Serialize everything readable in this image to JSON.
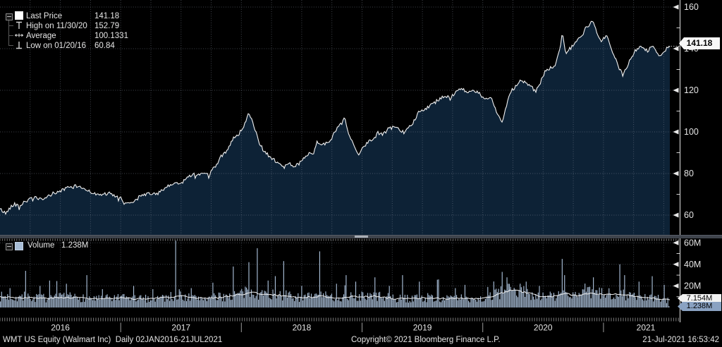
{
  "colors": {
    "background": "#000000",
    "price_fill": "#0d2236",
    "price_line": "#f2f2f2",
    "grid": "#8b95a5",
    "axis": "#c8c8c8",
    "tick_label": "#e4e4e4",
    "volume_bar": "#a8bdd6",
    "volume_ma_line": "#f2f2f2",
    "last_price_badge_bg": "#f7f7f7",
    "volume_badge_bg": "#8aa2c2"
  },
  "price_legend": {
    "collapse_icon": "minus-box-icon",
    "items": [
      {
        "icon": "last-price-swatch",
        "label": "Last Price",
        "value": "141.18"
      },
      {
        "icon": "high-marker-icon",
        "label": "High on 11/30/20",
        "value": "152.79"
      },
      {
        "icon": "average-marker-icon",
        "label": "Average",
        "value": "100.1331"
      },
      {
        "icon": "low-marker-icon",
        "label": "Low on 01/20/16",
        "value": "60.84"
      }
    ]
  },
  "volume_legend": {
    "collapse_icon": "box-icon",
    "swatch": "volume-swatch",
    "label": "Volume",
    "value": "1.238M"
  },
  "axes": {
    "price": {
      "tick_labels": [
        "160",
        "140",
        "120",
        "100",
        "80",
        "60"
      ],
      "tick_values": [
        160,
        140,
        120,
        100,
        80,
        60
      ],
      "minor_values": [
        150,
        130,
        110,
        90,
        70
      ],
      "last_price_label": "141.18"
    },
    "volume": {
      "tick_labels": [
        "60M",
        "40M",
        "20M"
      ],
      "tick_values": [
        60,
        40,
        20
      ],
      "minor_values": [
        50,
        30,
        10
      ],
      "ma_badge_label": "7.154M",
      "last_badge_label": "1.238M"
    },
    "x": {
      "year_labels": [
        "2016",
        "2017",
        "2018",
        "2019",
        "2020",
        "2021"
      ]
    }
  },
  "footer": {
    "left": "WMT US Equity (Walmart Inc)  Daily 02JAN2016-21JUL2021",
    "center": "Copyright© 2021 Bloomberg Finance L.P.",
    "right": "21-Jul-2021 16:53:42"
  },
  "chart_data": [
    {
      "type": "area",
      "title": "WMT US Equity Last Price",
      "x_unit": "decimal_year",
      "x_range": [
        2016.0,
        2021.55
      ],
      "ylim": [
        50,
        170
      ],
      "yticks": [
        60,
        80,
        100,
        120,
        140,
        160
      ],
      "grid": "dotted",
      "legend_position": "top-left",
      "stats": {
        "last_price": 141.18,
        "high_date": "11/30/20",
        "high": 152.79,
        "average": 100.1331,
        "low_date": "01/20/16",
        "low": 60.84
      },
      "series": [
        {
          "name": "Last Price",
          "points": [
            [
              2016.0,
              63.0
            ],
            [
              2016.03,
              61.5
            ],
            [
              2016.05,
              60.84
            ],
            [
              2016.08,
              63.5
            ],
            [
              2016.12,
              65.5
            ],
            [
              2016.16,
              64.0
            ],
            [
              2016.2,
              66.5
            ],
            [
              2016.25,
              67.5
            ],
            [
              2016.3,
              68.5
            ],
            [
              2016.35,
              67.0
            ],
            [
              2016.4,
              69.0
            ],
            [
              2016.44,
              70.5
            ],
            [
              2016.5,
              71.5
            ],
            [
              2016.55,
              73.0
            ],
            [
              2016.6,
              73.5
            ],
            [
              2016.65,
              74.0
            ],
            [
              2016.7,
              72.5
            ],
            [
              2016.75,
              71.5
            ],
            [
              2016.8,
              69.5
            ],
            [
              2016.85,
              70.0
            ],
            [
              2016.9,
              70.5
            ],
            [
              2016.95,
              69.0
            ],
            [
              2017.0,
              68.0
            ],
            [
              2017.05,
              65.3
            ],
            [
              2017.1,
              66.5
            ],
            [
              2017.15,
              68.5
            ],
            [
              2017.2,
              70.0
            ],
            [
              2017.25,
              70.5
            ],
            [
              2017.3,
              70.0
            ],
            [
              2017.35,
              72.0
            ],
            [
              2017.4,
              74.0
            ],
            [
              2017.45,
              75.5
            ],
            [
              2017.5,
              75.0
            ],
            [
              2017.55,
              78.0
            ],
            [
              2017.6,
              80.0
            ],
            [
              2017.63,
              78.5
            ],
            [
              2017.68,
              80.5
            ],
            [
              2017.73,
              79.0
            ],
            [
              2017.78,
              83.0
            ],
            [
              2017.83,
              88.0
            ],
            [
              2017.88,
              91.0
            ],
            [
              2017.93,
              97.0
            ],
            [
              2017.97,
              98.5
            ],
            [
              2018.02,
              102.0
            ],
            [
              2018.06,
              109.5
            ],
            [
              2018.09,
              106.0
            ],
            [
              2018.12,
              100.0
            ],
            [
              2018.15,
              94.0
            ],
            [
              2018.2,
              90.0
            ],
            [
              2018.25,
              87.5
            ],
            [
              2018.3,
              85.5
            ],
            [
              2018.34,
              82.5
            ],
            [
              2018.4,
              84.5
            ],
            [
              2018.45,
              83.5
            ],
            [
              2018.5,
              86.0
            ],
            [
              2018.55,
              89.5
            ],
            [
              2018.6,
              90.0
            ],
            [
              2018.63,
              95.5
            ],
            [
              2018.68,
              94.0
            ],
            [
              2018.73,
              95.0
            ],
            [
              2018.78,
              100.5
            ],
            [
              2018.83,
              104.0
            ],
            [
              2018.86,
              106.0
            ],
            [
              2018.89,
              99.0
            ],
            [
              2018.93,
              94.0
            ],
            [
              2018.97,
              88.0
            ],
            [
              2019.0,
              92.0
            ],
            [
              2019.05,
              95.5
            ],
            [
              2019.1,
              96.5
            ],
            [
              2019.13,
              99.5
            ],
            [
              2019.17,
              98.5
            ],
            [
              2019.22,
              101.5
            ],
            [
              2019.28,
              102.5
            ],
            [
              2019.33,
              99.5
            ],
            [
              2019.38,
              102.0
            ],
            [
              2019.42,
              104.0
            ],
            [
              2019.47,
              110.0
            ],
            [
              2019.53,
              111.5
            ],
            [
              2019.58,
              113.0
            ],
            [
              2019.63,
              115.5
            ],
            [
              2019.68,
              117.5
            ],
            [
              2019.73,
              116.0
            ],
            [
              2019.78,
              119.5
            ],
            [
              2019.83,
              120.5
            ],
            [
              2019.87,
              119.0
            ],
            [
              2019.92,
              119.5
            ],
            [
              2019.97,
              118.5
            ],
            [
              2020.02,
              115.0
            ],
            [
              2020.07,
              117.5
            ],
            [
              2020.12,
              108.5
            ],
            [
              2020.16,
              104.5
            ],
            [
              2020.2,
              113.5
            ],
            [
              2020.24,
              120.0
            ],
            [
              2020.28,
              122.5
            ],
            [
              2020.32,
              125.0
            ],
            [
              2020.36,
              123.5
            ],
            [
              2020.4,
              121.5
            ],
            [
              2020.44,
              119.5
            ],
            [
              2020.48,
              124.0
            ],
            [
              2020.52,
              129.5
            ],
            [
              2020.56,
              130.5
            ],
            [
              2020.6,
              132.0
            ],
            [
              2020.64,
              140.0
            ],
            [
              2020.66,
              147.5
            ],
            [
              2020.69,
              137.5
            ],
            [
              2020.73,
              140.5
            ],
            [
              2020.77,
              143.5
            ],
            [
              2020.81,
              145.0
            ],
            [
              2020.85,
              149.5
            ],
            [
              2020.88,
              151.5
            ],
            [
              2020.91,
              152.79
            ],
            [
              2020.94,
              148.5
            ],
            [
              2020.97,
              145.0
            ],
            [
              2021.0,
              144.5
            ],
            [
              2021.03,
              146.5
            ],
            [
              2021.06,
              140.0
            ],
            [
              2021.09,
              137.0
            ],
            [
              2021.12,
              131.5
            ],
            [
              2021.16,
              127.5
            ],
            [
              2021.19,
              131.0
            ],
            [
              2021.23,
              135.5
            ],
            [
              2021.27,
              139.5
            ],
            [
              2021.31,
              141.5
            ],
            [
              2021.34,
              140.0
            ],
            [
              2021.37,
              139.0
            ],
            [
              2021.4,
              141.0
            ],
            [
              2021.43,
              139.5
            ],
            [
              2021.46,
              136.5
            ],
            [
              2021.49,
              138.0
            ],
            [
              2021.52,
              140.0
            ],
            [
              2021.55,
              141.18
            ]
          ]
        }
      ]
    },
    {
      "type": "bar",
      "title": "Volume",
      "x_unit": "decimal_year",
      "x_range": [
        2016.0,
        2021.55
      ],
      "ylim": [
        0,
        64
      ],
      "yticks": [
        20,
        40,
        60
      ],
      "unit": "M shares",
      "grid": "dotted",
      "last_volume": 1.238,
      "ma_last": 7.154,
      "base_range": [
        4,
        13
      ],
      "ma_points": [
        [
          2016.0,
          10.0
        ],
        [
          2016.2,
          9.0
        ],
        [
          2016.4,
          8.5
        ],
        [
          2016.6,
          9.5
        ],
        [
          2016.8,
          8.0
        ],
        [
          2017.0,
          8.5
        ],
        [
          2017.2,
          8.0
        ],
        [
          2017.4,
          9.5
        ],
        [
          2017.5,
          10.5
        ],
        [
          2017.6,
          8.5
        ],
        [
          2017.8,
          9.0
        ],
        [
          2017.95,
          11.5
        ],
        [
          2018.1,
          14.0
        ],
        [
          2018.2,
          12.0
        ],
        [
          2018.35,
          11.0
        ],
        [
          2018.5,
          9.0
        ],
        [
          2018.65,
          10.5
        ],
        [
          2018.8,
          9.0
        ],
        [
          2018.95,
          10.0
        ],
        [
          2019.1,
          10.5
        ],
        [
          2019.25,
          8.5
        ],
        [
          2019.4,
          8.0
        ],
        [
          2019.55,
          9.0
        ],
        [
          2019.7,
          8.0
        ],
        [
          2019.85,
          8.5
        ],
        [
          2020.0,
          8.0
        ],
        [
          2020.15,
          13.0
        ],
        [
          2020.25,
          16.5
        ],
        [
          2020.35,
          14.0
        ],
        [
          2020.5,
          10.0
        ],
        [
          2020.6,
          10.5
        ],
        [
          2020.7,
          12.5
        ],
        [
          2020.8,
          11.0
        ],
        [
          2020.9,
          13.5
        ],
        [
          2021.0,
          12.0
        ],
        [
          2021.1,
          13.0
        ],
        [
          2021.2,
          11.5
        ],
        [
          2021.3,
          9.0
        ],
        [
          2021.4,
          8.5
        ],
        [
          2021.5,
          7.5
        ],
        [
          2021.55,
          7.154
        ]
      ],
      "spikes": [
        [
          2016.08,
          18
        ],
        [
          2016.21,
          34
        ],
        [
          2016.33,
          20
        ],
        [
          2016.41,
          25
        ],
        [
          2016.55,
          22
        ],
        [
          2016.72,
          30
        ],
        [
          2016.85,
          17
        ],
        [
          2017.1,
          20
        ],
        [
          2017.26,
          17
        ],
        [
          2017.45,
          62
        ],
        [
          2017.58,
          18
        ],
        [
          2017.76,
          23
        ],
        [
          2017.93,
          38
        ],
        [
          2018.06,
          42
        ],
        [
          2018.13,
          55
        ],
        [
          2018.22,
          25
        ],
        [
          2018.35,
          43
        ],
        [
          2018.5,
          20
        ],
        [
          2018.65,
          52
        ],
        [
          2018.78,
          22
        ],
        [
          2018.86,
          30
        ],
        [
          2018.94,
          24
        ],
        [
          2019.1,
          28
        ],
        [
          2019.22,
          20
        ],
        [
          2019.33,
          30
        ],
        [
          2019.47,
          24
        ],
        [
          2019.63,
          26
        ],
        [
          2019.77,
          18
        ],
        [
          2019.85,
          21
        ],
        [
          2020.04,
          19
        ],
        [
          2020.16,
          33
        ],
        [
          2020.2,
          28
        ],
        [
          2020.36,
          24
        ],
        [
          2020.47,
          20
        ],
        [
          2020.65,
          45
        ],
        [
          2020.67,
          30
        ],
        [
          2020.91,
          28
        ],
        [
          2021.13,
          40
        ],
        [
          2021.17,
          30
        ],
        [
          2021.29,
          24
        ],
        [
          2021.4,
          29
        ],
        [
          2021.5,
          21
        ]
      ]
    }
  ]
}
